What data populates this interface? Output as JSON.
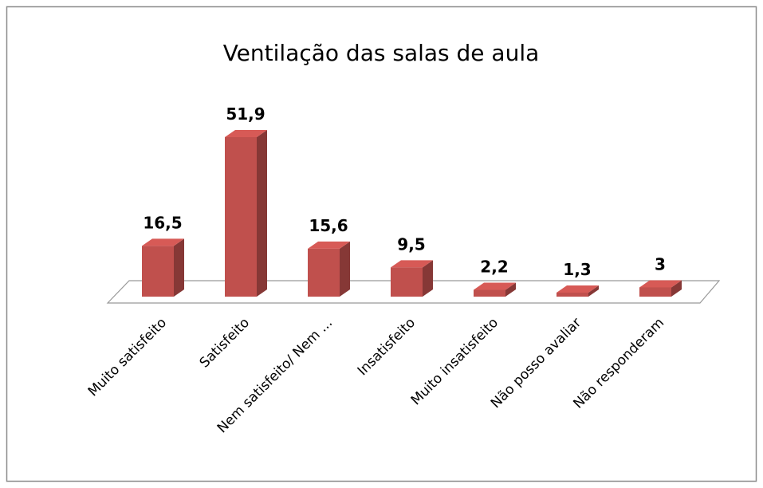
{
  "chart_data": {
    "type": "bar3d",
    "title": "Ventilação das salas de aula",
    "categories": [
      "Muito satisfeito",
      "Satisfeito",
      "Nem satisfeito/ Nem ...",
      "Insatisfeito",
      "Muito insatisfeito",
      "Não posso avaliar",
      "Não responderam"
    ],
    "values": [
      16.5,
      51.9,
      15.6,
      9.5,
      2.2,
      1.3,
      3
    ],
    "value_labels": [
      "16,5",
      "51,9",
      "15,6",
      "9,5",
      "2,2",
      "1,3",
      "3"
    ],
    "color": "#c0504d"
  }
}
